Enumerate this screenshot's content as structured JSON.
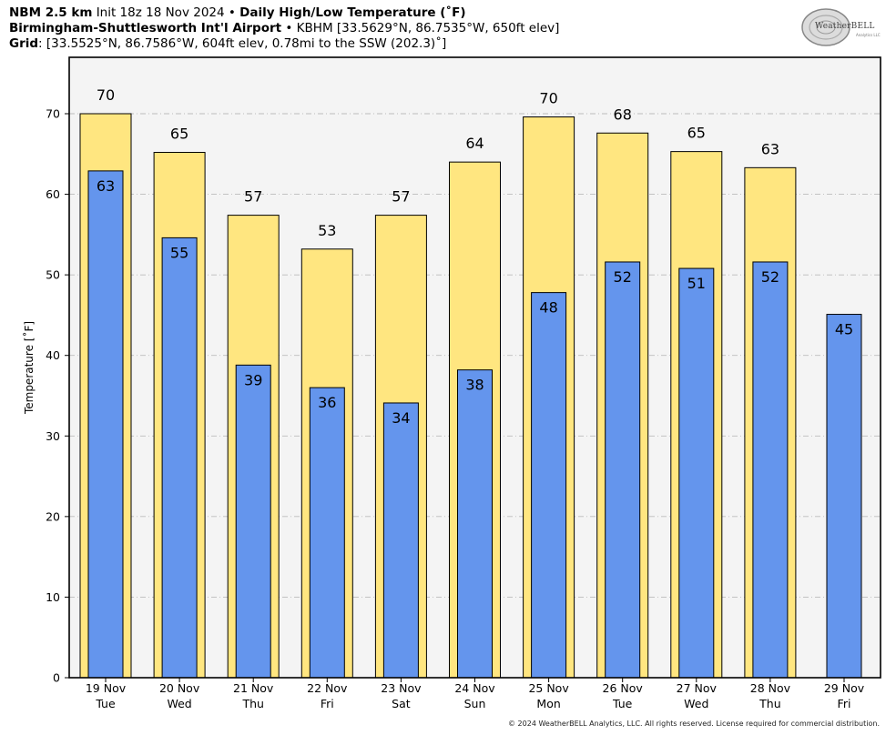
{
  "header": {
    "line1_bold_a": "NBM 2.5 km",
    "line1_text_a": "Init 18z 18 Nov 2024",
    "line1_sep": "•",
    "line1_bold_b": "Daily High/Low Temperature (˚F)",
    "line2_bold": "Birmingham-Shuttlesworth Int'l Airport",
    "line2_sep": "•",
    "line2_text": "KBHM [33.5629°N, 86.7535°W, 650ft elev]",
    "line3_bold": "Grid",
    "line3_text": ": [33.5525°N, 86.7586°W, 604ft elev, 0.78mi to the SSW (202.3)˚]"
  },
  "logo": {
    "text": "WeatherBELL",
    "subtext": "Analytics LLC"
  },
  "footer": "© 2024 WeatherBELL Analytics, LLC. All rights reserved. License required for commercial distribution.",
  "colors": {
    "high": "#FFE680",
    "low": "#6495ED",
    "plot_bg": "#F4F4F4",
    "grid": "#BBBBBB"
  },
  "chart_data": {
    "type": "bar",
    "ylabel": "Temperature [˚F]",
    "ylim": [
      0,
      77
    ],
    "yticks": [
      0,
      10,
      20,
      30,
      40,
      50,
      60,
      70
    ],
    "grid": true,
    "categories": [
      {
        "date": "19 Nov",
        "day": "Tue"
      },
      {
        "date": "20 Nov",
        "day": "Wed"
      },
      {
        "date": "21 Nov",
        "day": "Thu"
      },
      {
        "date": "22 Nov",
        "day": "Fri"
      },
      {
        "date": "23 Nov",
        "day": "Sat"
      },
      {
        "date": "24 Nov",
        "day": "Sun"
      },
      {
        "date": "25 Nov",
        "day": "Mon"
      },
      {
        "date": "26 Nov",
        "day": "Tue"
      },
      {
        "date": "27 Nov",
        "day": "Wed"
      },
      {
        "date": "28 Nov",
        "day": "Thu"
      },
      {
        "date": "29 Nov",
        "day": "Fri"
      }
    ],
    "series": [
      {
        "values": [
          70,
          65.2,
          57.4,
          53.2,
          57.4,
          64,
          69.6,
          67.6,
          65.3,
          63.3,
          null
        ],
        "labels": [
          "70",
          "65",
          "57",
          "53",
          "57",
          "64",
          "70",
          "68",
          "65",
          "63",
          ""
        ]
      },
      {
        "values": [
          62.9,
          54.6,
          38.8,
          36,
          34.1,
          38.2,
          47.8,
          51.6,
          50.8,
          51.6,
          45.1
        ],
        "labels": [
          "63",
          "55",
          "39",
          "36",
          "34",
          "38",
          "48",
          "52",
          "51",
          "52",
          "45"
        ]
      }
    ]
  }
}
